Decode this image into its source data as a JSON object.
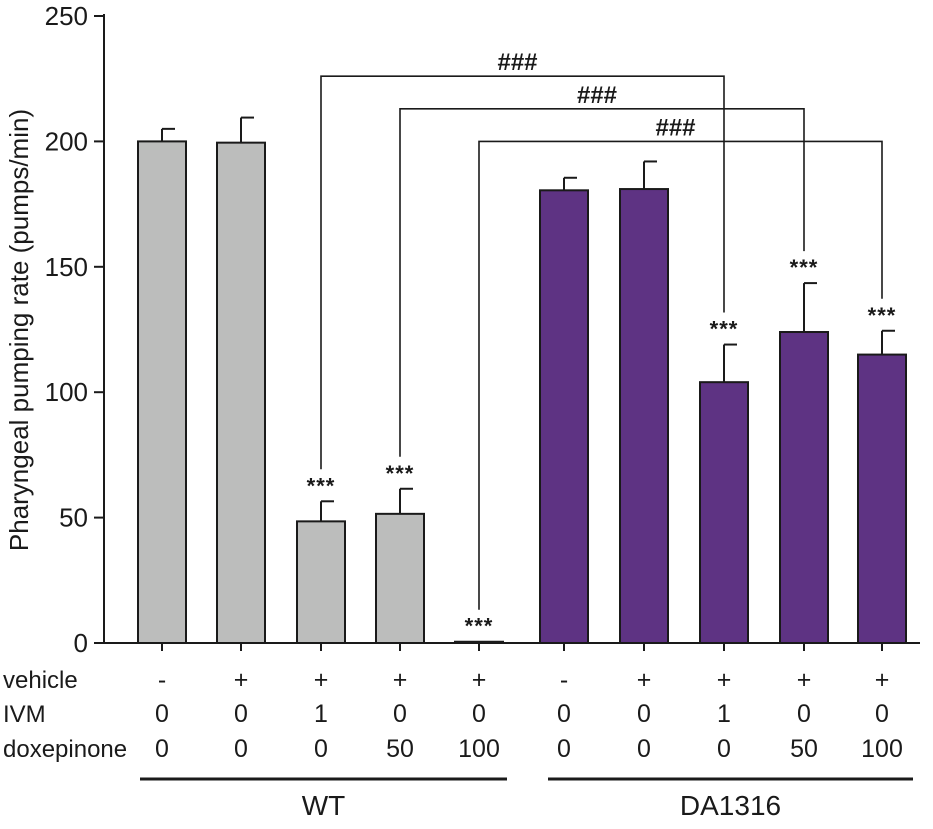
{
  "chart_data": {
    "type": "bar",
    "title": "",
    "xlabel": "",
    "ylabel": "Pharyngeal pumping rate (pumps/min)",
    "ylim": [
      0,
      250
    ],
    "yticks": [
      0,
      50,
      100,
      150,
      200,
      250
    ],
    "bars": [
      {
        "group": "WT",
        "vehicle": "-",
        "IVM": "0",
        "doxepinone": "0",
        "value": 200,
        "error": 5,
        "sig": ""
      },
      {
        "group": "WT",
        "vehicle": "+",
        "IVM": "0",
        "doxepinone": "0",
        "value": 199.5,
        "error": 10,
        "sig": ""
      },
      {
        "group": "WT",
        "vehicle": "+",
        "IVM": "1",
        "doxepinone": "0",
        "value": 48.5,
        "error": 8,
        "sig": "***"
      },
      {
        "group": "WT",
        "vehicle": "+",
        "IVM": "0",
        "doxepinone": "50",
        "value": 51.5,
        "error": 10,
        "sig": "***"
      },
      {
        "group": "WT",
        "vehicle": "+",
        "IVM": "0",
        "doxepinone": "100",
        "value": 0.5,
        "error": 0,
        "sig": "***"
      },
      {
        "group": "DA1316",
        "vehicle": "-",
        "IVM": "0",
        "doxepinone": "0",
        "value": 180.5,
        "error": 5,
        "sig": ""
      },
      {
        "group": "DA1316",
        "vehicle": "+",
        "IVM": "0",
        "doxepinone": "0",
        "value": 181,
        "error": 11,
        "sig": ""
      },
      {
        "group": "DA1316",
        "vehicle": "+",
        "IVM": "1",
        "doxepinone": "0",
        "value": 104,
        "error": 15,
        "sig": "***"
      },
      {
        "group": "DA1316",
        "vehicle": "+",
        "IVM": "0",
        "doxepinone": "50",
        "value": 124,
        "error": 19.5,
        "sig": "***"
      },
      {
        "group": "DA1316",
        "vehicle": "+",
        "IVM": "0",
        "doxepinone": "100",
        "value": 115,
        "error": 9.5,
        "sig": "***"
      }
    ],
    "comparisons": [
      {
        "from": 2,
        "to": 7,
        "level": 226,
        "label": "###"
      },
      {
        "from": 3,
        "to": 8,
        "level": 213,
        "label": "###"
      },
      {
        "from": 4,
        "to": 9,
        "level": 200,
        "label": "###"
      }
    ],
    "row_labels": [
      "vehicle",
      "IVM",
      "doxepinone"
    ],
    "groups": [
      "WT",
      "DA1316"
    ],
    "colors": {
      "WT": "#bcbdbc",
      "DA1316": "#5e3383",
      "outline": "#1a1a1a"
    }
  }
}
